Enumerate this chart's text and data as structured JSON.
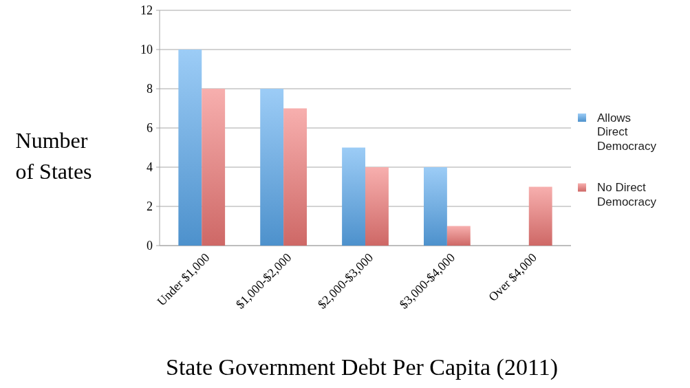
{
  "chart_data": {
    "type": "bar",
    "xlabel": "State Government Debt Per Capita (2011)",
    "ylabel": "Number of States",
    "categories": [
      "Under $1,000",
      "$1,000-$2,000",
      "$2,000-$3,000",
      "$3,000-$4,000",
      "Over $4,000"
    ],
    "series": [
      {
        "name": "Allows Direct Democracy",
        "color": "#5aaaf0",
        "values": [
          10,
          8,
          5,
          4,
          0
        ]
      },
      {
        "name": "No Direct Democracy",
        "color": "#f27a78",
        "values": [
          8,
          7,
          4,
          1,
          3
        ]
      }
    ],
    "ylim": [
      0,
      12
    ],
    "yticks": [
      0,
      2,
      4,
      6,
      8,
      10,
      12
    ],
    "grid": "y",
    "legend": "right"
  }
}
